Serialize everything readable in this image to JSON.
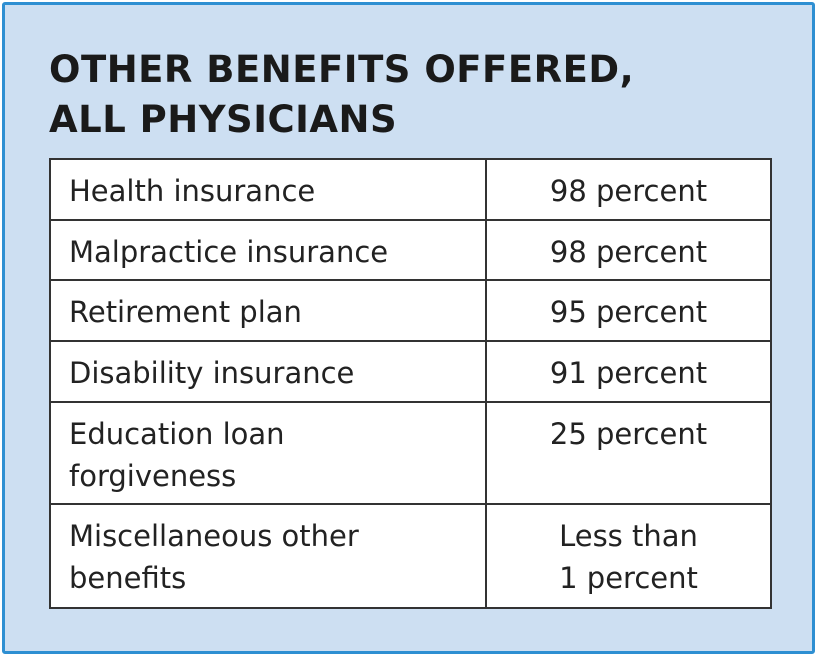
{
  "header": {
    "title": [
      "OTHER BENEFITS OFFERED,",
      "ALL PHYSICIANS"
    ]
  },
  "table": {
    "rows": [
      [
        [
          "Health insurance"
        ],
        [
          "98 percent"
        ]
      ],
      [
        [
          "Malpractice insurance"
        ],
        [
          "98 percent"
        ]
      ],
      [
        [
          "Retirement plan"
        ],
        [
          "95 percent"
        ]
      ],
      [
        [
          "Disability insurance"
        ],
        [
          "91 percent"
        ]
      ],
      [
        [
          "Education loan",
          "forgiveness"
        ],
        [
          "25 percent"
        ]
      ],
      [
        [
          "Miscellaneous other",
          "benefits"
        ],
        [
          "Less than",
          "1 percent"
        ]
      ]
    ]
  }
}
